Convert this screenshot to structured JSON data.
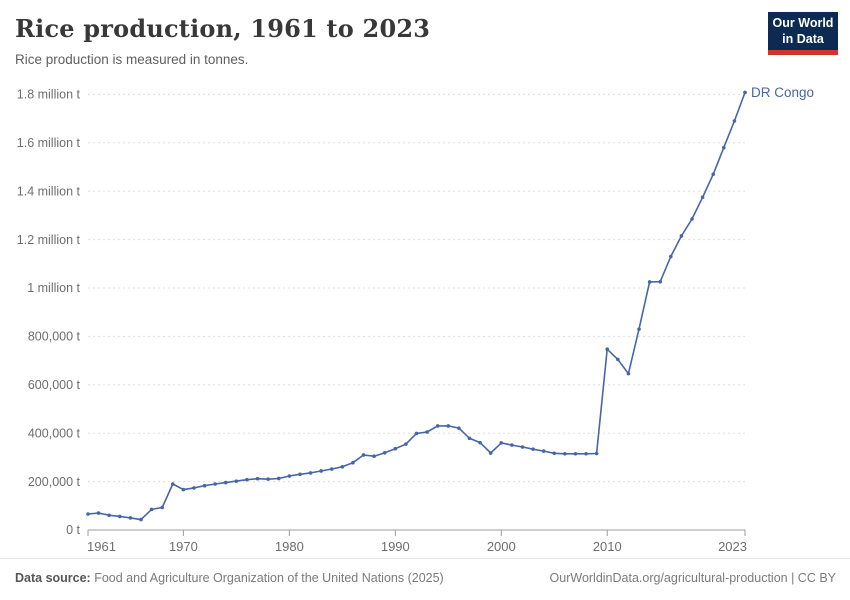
{
  "header": {
    "title": "Rice production, 1961 to 2023",
    "subtitle": "Rice production is measured in tonnes."
  },
  "logo": {
    "line1": "Our World",
    "line2": "in Data",
    "bg_color": "#0c2a52",
    "accent_color": "#d0352c"
  },
  "footer": {
    "source_label": "Data source:",
    "source_text": " Food and Agriculture Organization of the United Nations (2025)",
    "right_text": "OurWorldinData.org/agricultural-production | CC BY"
  },
  "chart_data": {
    "type": "line",
    "title": "Rice production, 1961 to 2023",
    "subtitle": "Rice production is measured in tonnes.",
    "entity_label": "DR Congo",
    "unit": "tonnes",
    "line_color": "#4666a8",
    "label_color": "#4666a8",
    "grid": true,
    "grid_style": "dashed",
    "grid_color": "#dedede",
    "axis_color": "#9c9c9c",
    "tick_text_color": "#6e6e6e",
    "legend_position": "end-of-line",
    "xlim": [
      1961,
      2023
    ],
    "ylim": [
      0,
      1800000
    ],
    "xticks": [
      1961,
      1970,
      1980,
      1990,
      2000,
      2010,
      2023
    ],
    "yticks": [
      {
        "value": 0,
        "label": "0 t"
      },
      {
        "value": 200000,
        "label": "200,000 t"
      },
      {
        "value": 400000,
        "label": "400,000 t"
      },
      {
        "value": 600000,
        "label": "600,000 t"
      },
      {
        "value": 800000,
        "label": "800,000 t"
      },
      {
        "value": 1000000,
        "label": "1 million t"
      },
      {
        "value": 1200000,
        "label": "1.2 million t"
      },
      {
        "value": 1400000,
        "label": "1.4 million t"
      },
      {
        "value": 1600000,
        "label": "1.6 million t"
      },
      {
        "value": 1800000,
        "label": "1.8 million t"
      }
    ],
    "x": [
      1961,
      1962,
      1963,
      1964,
      1965,
      1966,
      1967,
      1968,
      1969,
      1970,
      1971,
      1972,
      1973,
      1974,
      1975,
      1976,
      1977,
      1978,
      1979,
      1980,
      1981,
      1982,
      1983,
      1984,
      1985,
      1986,
      1987,
      1988,
      1989,
      1990,
      1991,
      1992,
      1993,
      1994,
      1995,
      1996,
      1997,
      1998,
      1999,
      2000,
      2001,
      2002,
      2003,
      2004,
      2005,
      2006,
      2007,
      2008,
      2009,
      2010,
      2011,
      2012,
      2013,
      2014,
      2015,
      2016,
      2017,
      2018,
      2019,
      2020,
      2021,
      2022,
      2023
    ],
    "series": [
      {
        "name": "DR Congo",
        "values": [
          66000,
          70000,
          61000,
          56000,
          50000,
          43000,
          85000,
          93000,
          190000,
          167000,
          174000,
          183000,
          190000,
          196000,
          202000,
          208000,
          212000,
          210000,
          213000,
          223000,
          230000,
          236000,
          244000,
          252000,
          261000,
          278000,
          310000,
          305000,
          319000,
          336000,
          355000,
          399000,
          405000,
          430000,
          430000,
          421000,
          379000,
          361000,
          318000,
          360000,
          351000,
          343000,
          334000,
          326000,
          317000,
          315000,
          315000,
          315000,
          316000,
          747000,
          705000,
          646000,
          830000,
          1025000,
          1026000,
          1130000,
          1215000,
          1285000,
          1375000,
          1470000,
          1580000,
          1690000,
          1808000
        ]
      }
    ],
    "plot_geometry": {
      "x_left": 88,
      "x_right": 745,
      "y_zero": 530,
      "y_top": 94.4
    }
  }
}
